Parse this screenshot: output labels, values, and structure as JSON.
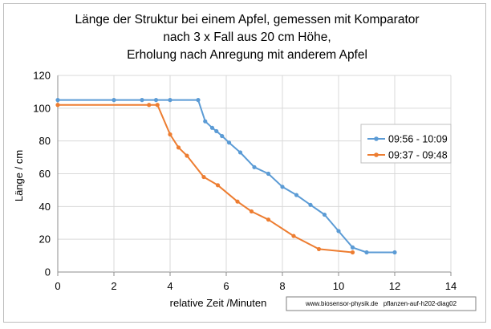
{
  "chart_data": {
    "type": "line",
    "title_lines": [
      "Länge der Struktur bei einem Apfel, gemessen mit Komparator",
      "nach 3 x Fall aus 20 cm Höhe,",
      "Erholung nach Anregung mit anderem Apfel"
    ],
    "xlabel": "relative Zeit /Minuten",
    "ylabel": "Länge / cm",
    "xlim": [
      0,
      14
    ],
    "ylim": [
      0,
      120
    ],
    "x_ticks": [
      "0",
      "2",
      "4",
      "6",
      "8",
      "10",
      "12",
      "14"
    ],
    "y_ticks": [
      "0",
      "20",
      "40",
      "60",
      "80",
      "100",
      "120"
    ],
    "grid": true,
    "legend_position": "right",
    "credit": "www.biosensor-physik.de   pflanzen-auf-h202-diag02",
    "series": [
      {
        "name": "09:56 - 10:09",
        "color": "#5b9bd5",
        "x": [
          0,
          2,
          3,
          3.5,
          4,
          5,
          5.25,
          5.5,
          5.65,
          5.85,
          6.1,
          6.5,
          7,
          7.5,
          8,
          8.5,
          9,
          9.5,
          10,
          10.5,
          11,
          12
        ],
        "y": [
          105,
          105,
          105,
          105,
          105,
          105,
          92,
          88,
          86,
          83,
          79,
          73,
          64,
          60,
          52,
          47,
          41,
          35,
          25,
          15,
          12,
          12
        ]
      },
      {
        "name": "09:37 - 09:48",
        "color": "#ed7d31",
        "x": [
          0,
          3.25,
          3.55,
          4,
          4.3,
          4.6,
          5.2,
          5.7,
          6.4,
          6.9,
          7.5,
          8.4,
          9.3,
          10.5
        ],
        "y": [
          102,
          102,
          102,
          84,
          76,
          71,
          58,
          53,
          43,
          37,
          32,
          22,
          14,
          12
        ]
      }
    ]
  }
}
